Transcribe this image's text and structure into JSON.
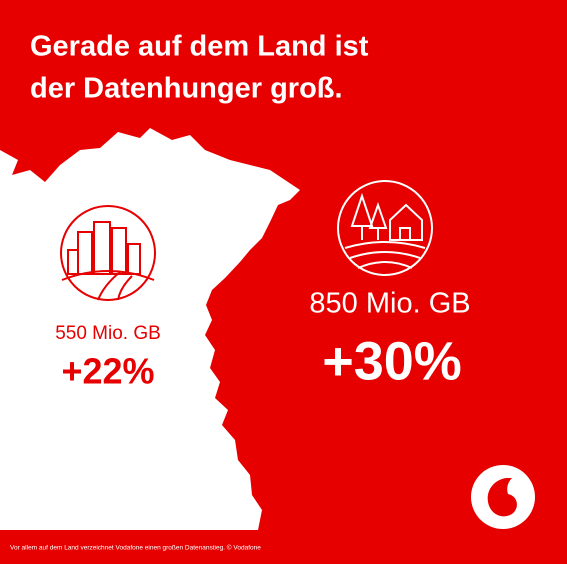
{
  "header": {
    "title_lines": [
      "Gerade auf dem Land ist",
      "der Datenhunger groß."
    ]
  },
  "city": {
    "volume": "550 Mio. GB",
    "growth": "+22%"
  },
  "country": {
    "volume": "850 Mio. GB",
    "growth": "+30%"
  },
  "footer": {
    "note": "Vor allem auf dem Land verzeichnet Vodafone einen großen Datenanstieg. © Vodafone"
  }
}
